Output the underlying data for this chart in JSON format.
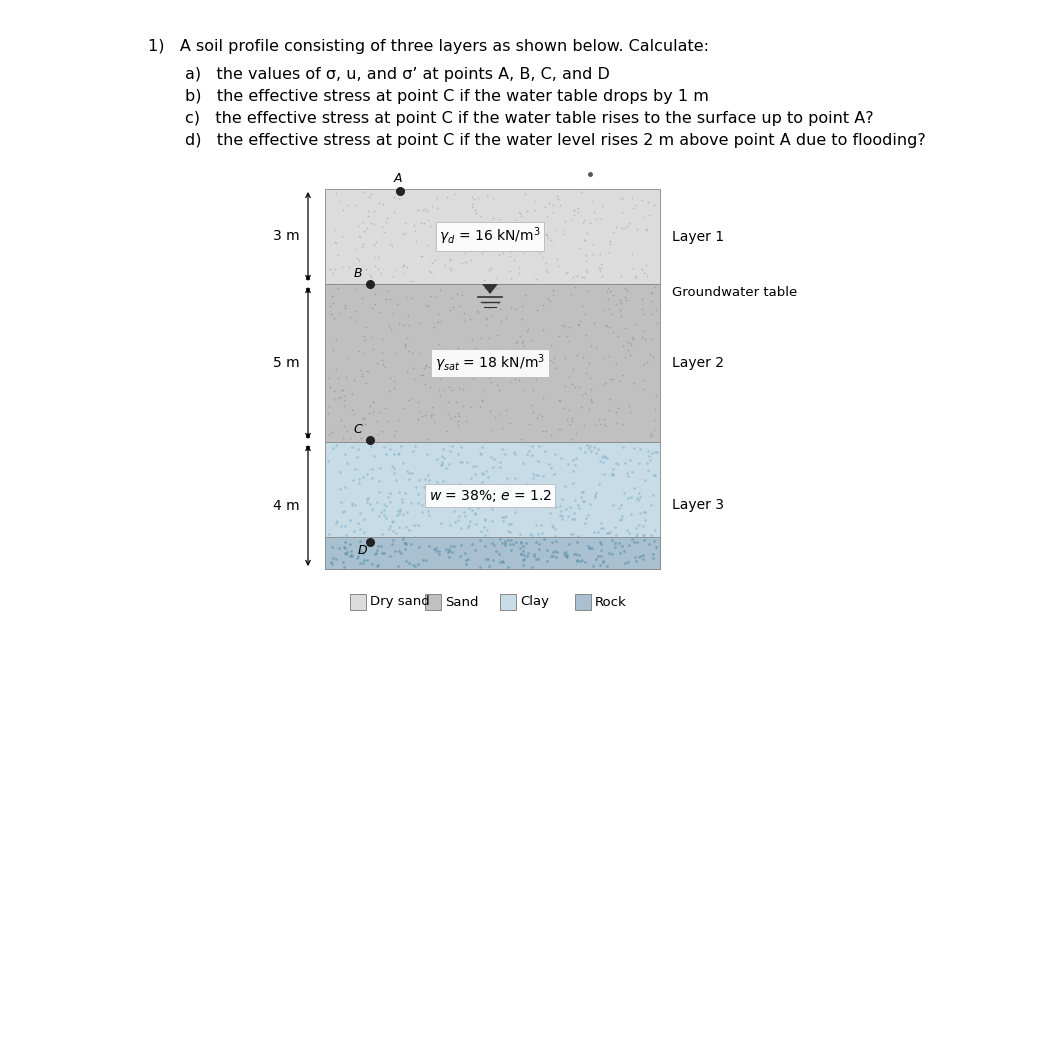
{
  "title_text": "1)   A soil profile consisting of three layers as shown below. Calculate:",
  "items": [
    "a)   the values of σ, u, and σ’ at points A, B, C, and D",
    "b)   the effective stress at point C if the water table drops by 1 m",
    "c)   the effective stress at point C if the water table rises to the surface up to point A?",
    "d)   the effective stress at point C if the water level rises 2 m above point A due to flooding?"
  ],
  "layer1_fc": "#dcdcdc",
  "layer2_fc": "#c0c0c0",
  "layer3_fc": "#c8dce8",
  "rock_fc": "#a8c0d0",
  "dot1_color": "#aaaaaa",
  "dot2_color": "#909090",
  "dot3_color": "#7aafc8",
  "rock_dot_color": "#5a90a8",
  "background": "#ffffff"
}
